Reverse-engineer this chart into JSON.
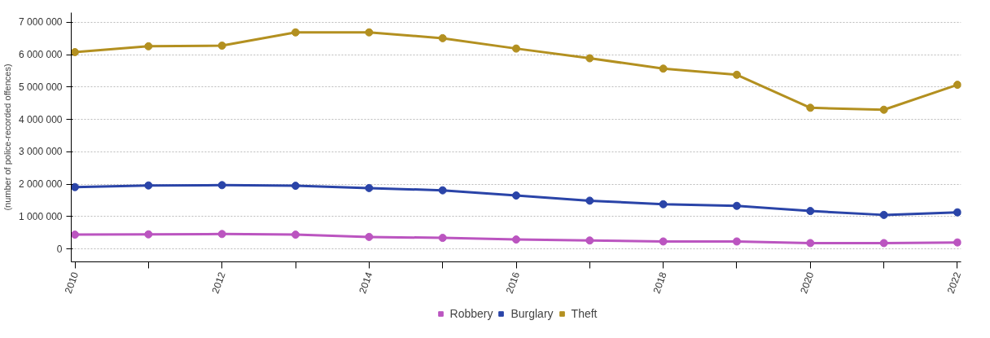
{
  "chart_data": {
    "type": "line",
    "ylabel": "(number of police-recorded offences)",
    "x": [
      2010,
      2011,
      2012,
      2013,
      2014,
      2015,
      2016,
      2017,
      2018,
      2019,
      2020,
      2021,
      2022
    ],
    "series": [
      {
        "name": "Robbery",
        "color": "#bb55c0",
        "values": [
          440000,
          450000,
          460000,
          440000,
          370000,
          340000,
          290000,
          260000,
          230000,
          230000,
          180000,
          180000,
          200000
        ]
      },
      {
        "name": "Burglary",
        "color": "#2a44a8",
        "values": [
          1910000,
          1960000,
          1970000,
          1950000,
          1880000,
          1810000,
          1650000,
          1490000,
          1380000,
          1330000,
          1170000,
          1050000,
          1130000
        ]
      },
      {
        "name": "Theft",
        "color": "#b39020",
        "values": [
          6080000,
          6260000,
          6280000,
          6690000,
          6690000,
          6510000,
          6190000,
          5890000,
          5570000,
          5380000,
          4360000,
          4300000,
          5070000
        ]
      }
    ],
    "xlim": [
      2009.95,
      2022.05
    ],
    "xticks": [
      2010,
      {
        "value": 2011,
        "label": null
      },
      2012,
      {
        "value": 2013,
        "label": null
      },
      2014,
      {
        "value": 2015,
        "label": null
      },
      2016,
      {
        "value": 2017,
        "label": null
      },
      2018,
      {
        "value": 2019,
        "label": null
      },
      2020,
      {
        "value": 2021,
        "label": null
      },
      2022
    ],
    "ylim": [
      -400000,
      7300000
    ],
    "yticks": [
      0,
      {
        "value": 1000000,
        "label": "1 000 000"
      },
      {
        "value": 2000000,
        "label": "2 000 000"
      },
      {
        "value": 3000000,
        "label": "3 000 000"
      },
      {
        "value": 4000000,
        "label": "4 000 000"
      },
      {
        "value": 5000000,
        "label": "5 000 000"
      },
      {
        "value": 6000000,
        "label": "6 000 000"
      },
      {
        "value": 7000000,
        "label": "7 000 000"
      }
    ],
    "grid": "y",
    "legend": "bottom",
    "marker": "circle",
    "line_style": "solid"
  }
}
